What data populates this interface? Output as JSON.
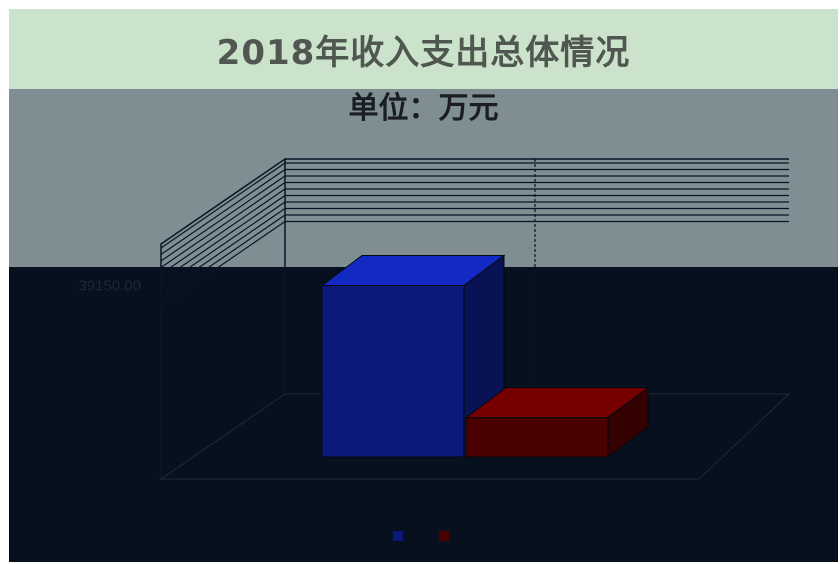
{
  "chart_data": {
    "type": "bar",
    "title": "2018年收入支出总体情况",
    "subtitle": "单位：万元",
    "categories": [
      ""
    ],
    "series": [
      {
        "name": "",
        "values": [
          39150.0
        ],
        "color": "#0b1a7a"
      },
      {
        "name": "",
        "values": [
          37000.0
        ],
        "color": "#4a0000"
      }
    ],
    "yticks": [
      "39150.00"
    ],
    "ylim": [
      36000,
      39500
    ],
    "grid": true,
    "legend": "bottom",
    "style": "3d-column"
  }
}
